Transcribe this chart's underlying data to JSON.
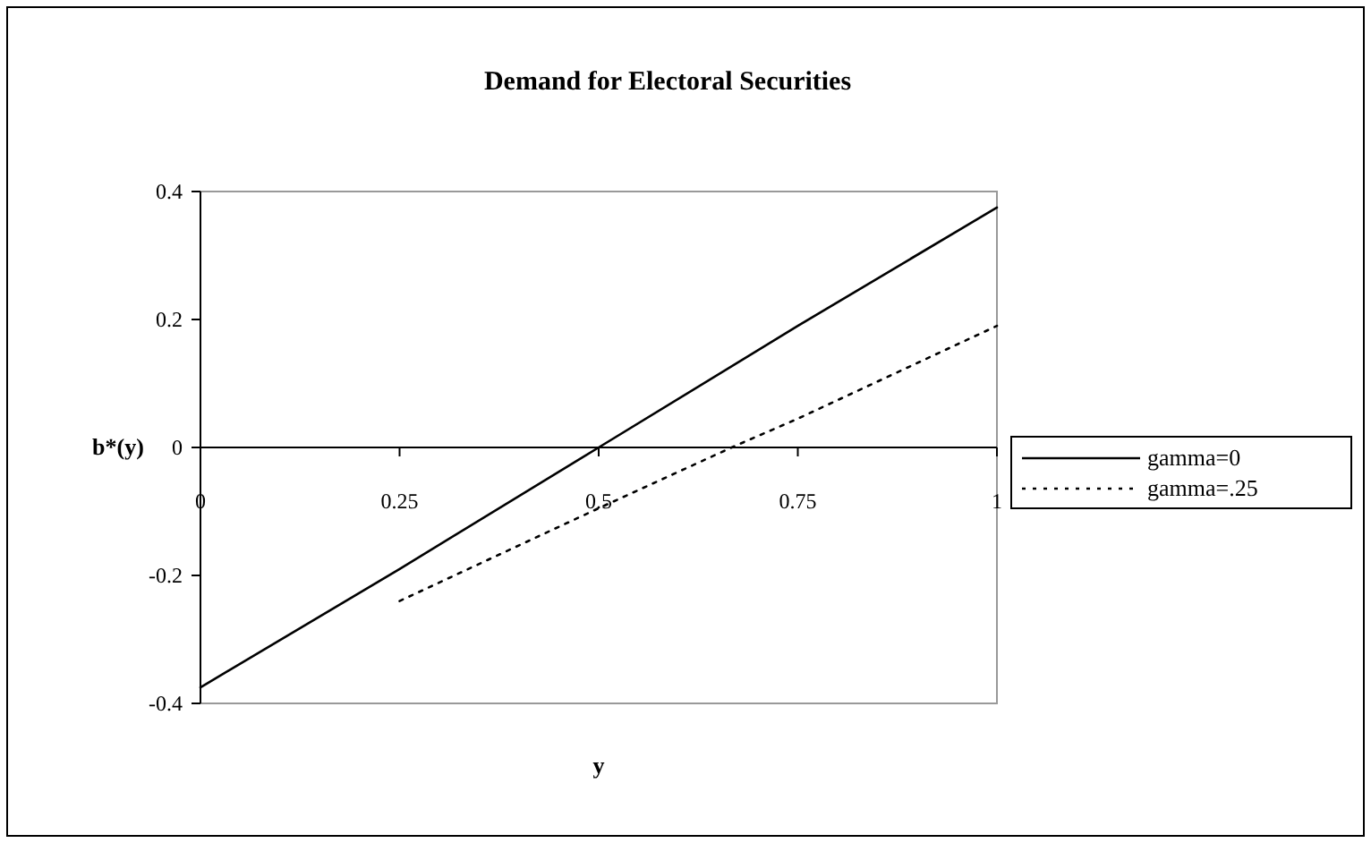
{
  "chart_data": {
    "type": "line",
    "title": "Demand for Electoral Securities",
    "xlabel": "y",
    "ylabel": "b*(y)",
    "xlim": [
      0,
      1
    ],
    "xticks": [
      0,
      0.25,
      0.5,
      0.75,
      1
    ],
    "ylim": [
      -0.4,
      0.4
    ],
    "yticks": [
      -0.4,
      -0.2,
      0,
      0.2,
      0.4
    ],
    "grid": false,
    "legend": "right",
    "marker": "none",
    "series": [
      {
        "name": "gamma=0",
        "color": "#000000",
        "line_style": "solid",
        "x": [
          0,
          0.25,
          0.5,
          0.75,
          1
        ],
        "values": [
          -0.375,
          -0.19,
          0,
          0.19,
          0.375
        ]
      },
      {
        "name": "gamma=.25",
        "color": "#000000",
        "line_style": "dotted",
        "x": [
          0.25,
          0.5,
          0.667,
          0.75,
          1
        ],
        "values": [
          -0.24,
          -0.095,
          0,
          0.045,
          0.19
        ]
      }
    ]
  }
}
